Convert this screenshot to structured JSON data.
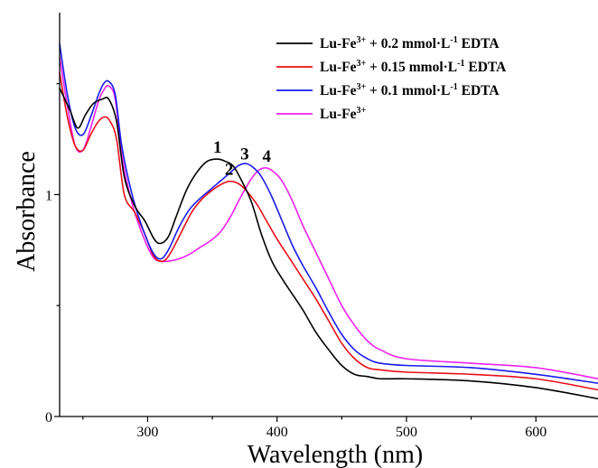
{
  "chart_data": {
    "type": "line",
    "xlabel": "Wavelength (nm)",
    "ylabel": "Absorbance",
    "xlim": [
      232,
      648
    ],
    "ylim": [
      0,
      1.82
    ],
    "xticks": [
      {
        "value": 300,
        "label": "300"
      },
      {
        "value": 400,
        "label": "400"
      },
      {
        "value": 500,
        "label": "500"
      },
      {
        "value": 600,
        "label": "600"
      }
    ],
    "yticks": [
      {
        "value": 0,
        "label": "0"
      },
      {
        "value": 1,
        "label": "1"
      }
    ],
    "legend_position": "top-right",
    "series": [
      {
        "name": "Lu-Fe3+ + 0.2 mmol·L-1 EDTA",
        "legend": {
          "pre": "Lu-Fe",
          "sup1": "3+",
          "mid": " + 0.2 mmol·L",
          "sup2": "-1",
          "post": " EDTA"
        },
        "color": "#000000",
        "annotation": "1",
        "annotation_at": [
          354,
          1.16
        ],
        "x": [
          232,
          240,
          246,
          252,
          258,
          265,
          270,
          276,
          282,
          290,
          298,
          305,
          310,
          316,
          322,
          330,
          338,
          346,
          354,
          360,
          366,
          372,
          380,
          388,
          396,
          404,
          412,
          420,
          430,
          440,
          450,
          460,
          470,
          480,
          500,
          550,
          600,
          648
        ],
        "y": [
          1.48,
          1.38,
          1.3,
          1.36,
          1.41,
          1.43,
          1.43,
          1.33,
          1.08,
          0.95,
          0.88,
          0.8,
          0.78,
          0.81,
          0.9,
          1.02,
          1.1,
          1.15,
          1.16,
          1.15,
          1.13,
          1.07,
          0.97,
          0.82,
          0.7,
          0.62,
          0.55,
          0.48,
          0.38,
          0.3,
          0.23,
          0.19,
          0.18,
          0.17,
          0.17,
          0.16,
          0.13,
          0.08
        ]
      },
      {
        "name": "Lu-Fe3+ + 0.15 mmol·L-1 EDTA",
        "legend": {
          "pre": "Lu-Fe",
          "sup1": "3+",
          "mid": " + 0.15 mmol·L",
          "sup2": "-1",
          "post": " EDTA"
        },
        "color": "#e8101a",
        "annotation": "2",
        "annotation_at": [
          363,
          1.06
        ],
        "x": [
          232,
          238,
          244,
          250,
          256,
          262,
          267,
          271,
          276,
          282,
          290,
          298,
          305,
          312,
          318,
          326,
          334,
          342,
          350,
          358,
          364,
          370,
          376,
          384,
          392,
          400,
          410,
          420,
          430,
          440,
          450,
          460,
          470,
          480,
          500,
          550,
          600,
          648
        ],
        "y": [
          1.55,
          1.35,
          1.22,
          1.2,
          1.27,
          1.33,
          1.35,
          1.33,
          1.25,
          1.0,
          0.92,
          0.82,
          0.72,
          0.7,
          0.74,
          0.83,
          0.92,
          0.98,
          1.02,
          1.05,
          1.06,
          1.05,
          1.02,
          0.96,
          0.88,
          0.8,
          0.71,
          0.62,
          0.53,
          0.43,
          0.33,
          0.26,
          0.22,
          0.21,
          0.2,
          0.19,
          0.17,
          0.12
        ]
      },
      {
        "name": "Lu-Fe3+ + 0.1 mmol·L-1 EDTA",
        "legend": {
          "pre": "Lu-Fe",
          "sup1": "3+",
          "mid": " + 0.1 mmol·L",
          "sup2": "-1",
          "post": " EDTA"
        },
        "color": "#1a1aee",
        "annotation": "3",
        "annotation_at": [
          375,
          1.13
        ],
        "x": [
          232,
          238,
          244,
          250,
          256,
          262,
          266,
          270,
          275,
          280,
          288,
          296,
          304,
          310,
          316,
          324,
          332,
          340,
          348,
          356,
          364,
          370,
          376,
          382,
          388,
          396,
          404,
          412,
          420,
          430,
          440,
          450,
          460,
          470,
          480,
          500,
          550,
          600,
          648
        ],
        "y": [
          1.68,
          1.45,
          1.3,
          1.27,
          1.35,
          1.45,
          1.5,
          1.51,
          1.45,
          1.22,
          1.0,
          0.85,
          0.74,
          0.71,
          0.75,
          0.85,
          0.93,
          0.98,
          1.02,
          1.06,
          1.1,
          1.13,
          1.14,
          1.12,
          1.08,
          0.99,
          0.88,
          0.77,
          0.68,
          0.58,
          0.47,
          0.37,
          0.3,
          0.26,
          0.24,
          0.23,
          0.22,
          0.19,
          0.15
        ]
      },
      {
        "name": "Lu-Fe3+",
        "legend": {
          "pre": "Lu-Fe",
          "sup1": "3+",
          "mid": "",
          "sup2": "",
          "post": ""
        },
        "color": "#ee22ee",
        "annotation": "4",
        "annotation_at": [
          392,
          1.12
        ],
        "x": [
          232,
          238,
          244,
          250,
          256,
          262,
          266,
          270,
          275,
          280,
          288,
          296,
          304,
          310,
          316,
          324,
          332,
          340,
          348,
          356,
          364,
          372,
          380,
          386,
          392,
          398,
          404,
          412,
          420,
          430,
          440,
          450,
          460,
          470,
          480,
          500,
          550,
          600,
          648
        ],
        "y": [
          1.62,
          1.4,
          1.22,
          1.2,
          1.3,
          1.42,
          1.47,
          1.49,
          1.43,
          1.18,
          0.96,
          0.82,
          0.72,
          0.7,
          0.7,
          0.71,
          0.73,
          0.76,
          0.79,
          0.83,
          0.9,
          0.99,
          1.07,
          1.11,
          1.12,
          1.1,
          1.06,
          0.97,
          0.86,
          0.74,
          0.62,
          0.5,
          0.41,
          0.34,
          0.3,
          0.26,
          0.24,
          0.22,
          0.17
        ]
      }
    ]
  }
}
